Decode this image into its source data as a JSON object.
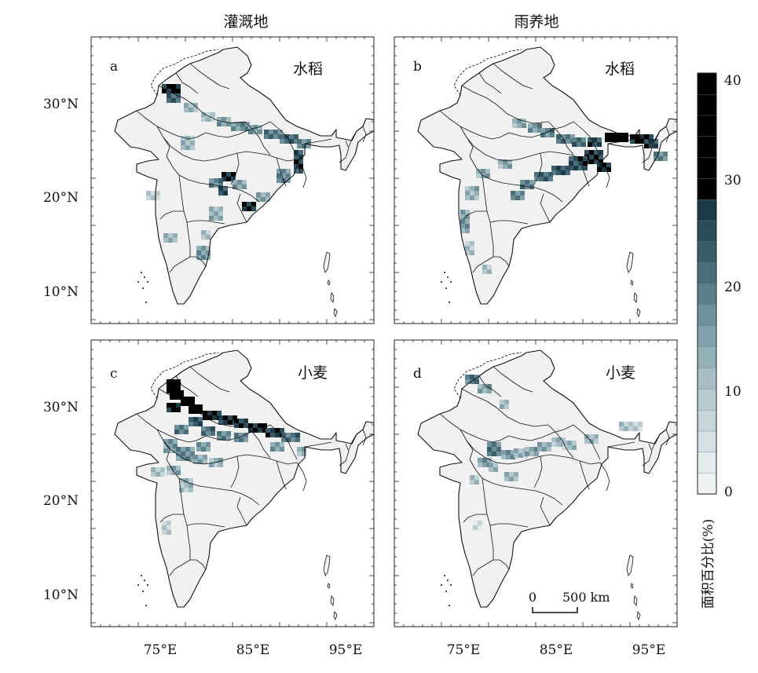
{
  "column_titles": {
    "left": "灌溉地",
    "right": "雨养地"
  },
  "panels": {
    "a": {
      "letter": "a",
      "crop": "水稻",
      "emphasis": "irrigated-rice"
    },
    "b": {
      "letter": "b",
      "crop": "水稻",
      "emphasis": "rainfed-rice"
    },
    "c": {
      "letter": "c",
      "crop": "小麦",
      "emphasis": "irrigated-wheat"
    },
    "d": {
      "letter": "d",
      "crop": "小麦",
      "emphasis": "rainfed-wheat"
    }
  },
  "axes": {
    "lat_labels": [
      "30°N",
      "20°N",
      "10°N"
    ],
    "lon_labels": [
      "75°E",
      "85°E",
      "95°E"
    ]
  },
  "scale_bar": {
    "start": "0",
    "end": "500 km"
  },
  "colorbar": {
    "title": "面积百分比(%)",
    "tick_labels": [
      "0",
      "10",
      "20",
      "30",
      "40"
    ],
    "min": 0,
    "max": 40,
    "colors": [
      "#eef2f3",
      "#e2eaec",
      "#d4e0e3",
      "#c6d6d9",
      "#b6cacf",
      "#a6bec4",
      "#94b0b7",
      "#82a1aa",
      "#6f919b",
      "#5c808b",
      "#4a6f7b",
      "#395e6a",
      "#2a4d59",
      "#1c3a46",
      "#000000",
      "#000000",
      "#000000",
      "#000000",
      "#000000",
      "#000000"
    ]
  },
  "colors": {
    "land": "#f1f1f1",
    "border": "#111111"
  }
}
